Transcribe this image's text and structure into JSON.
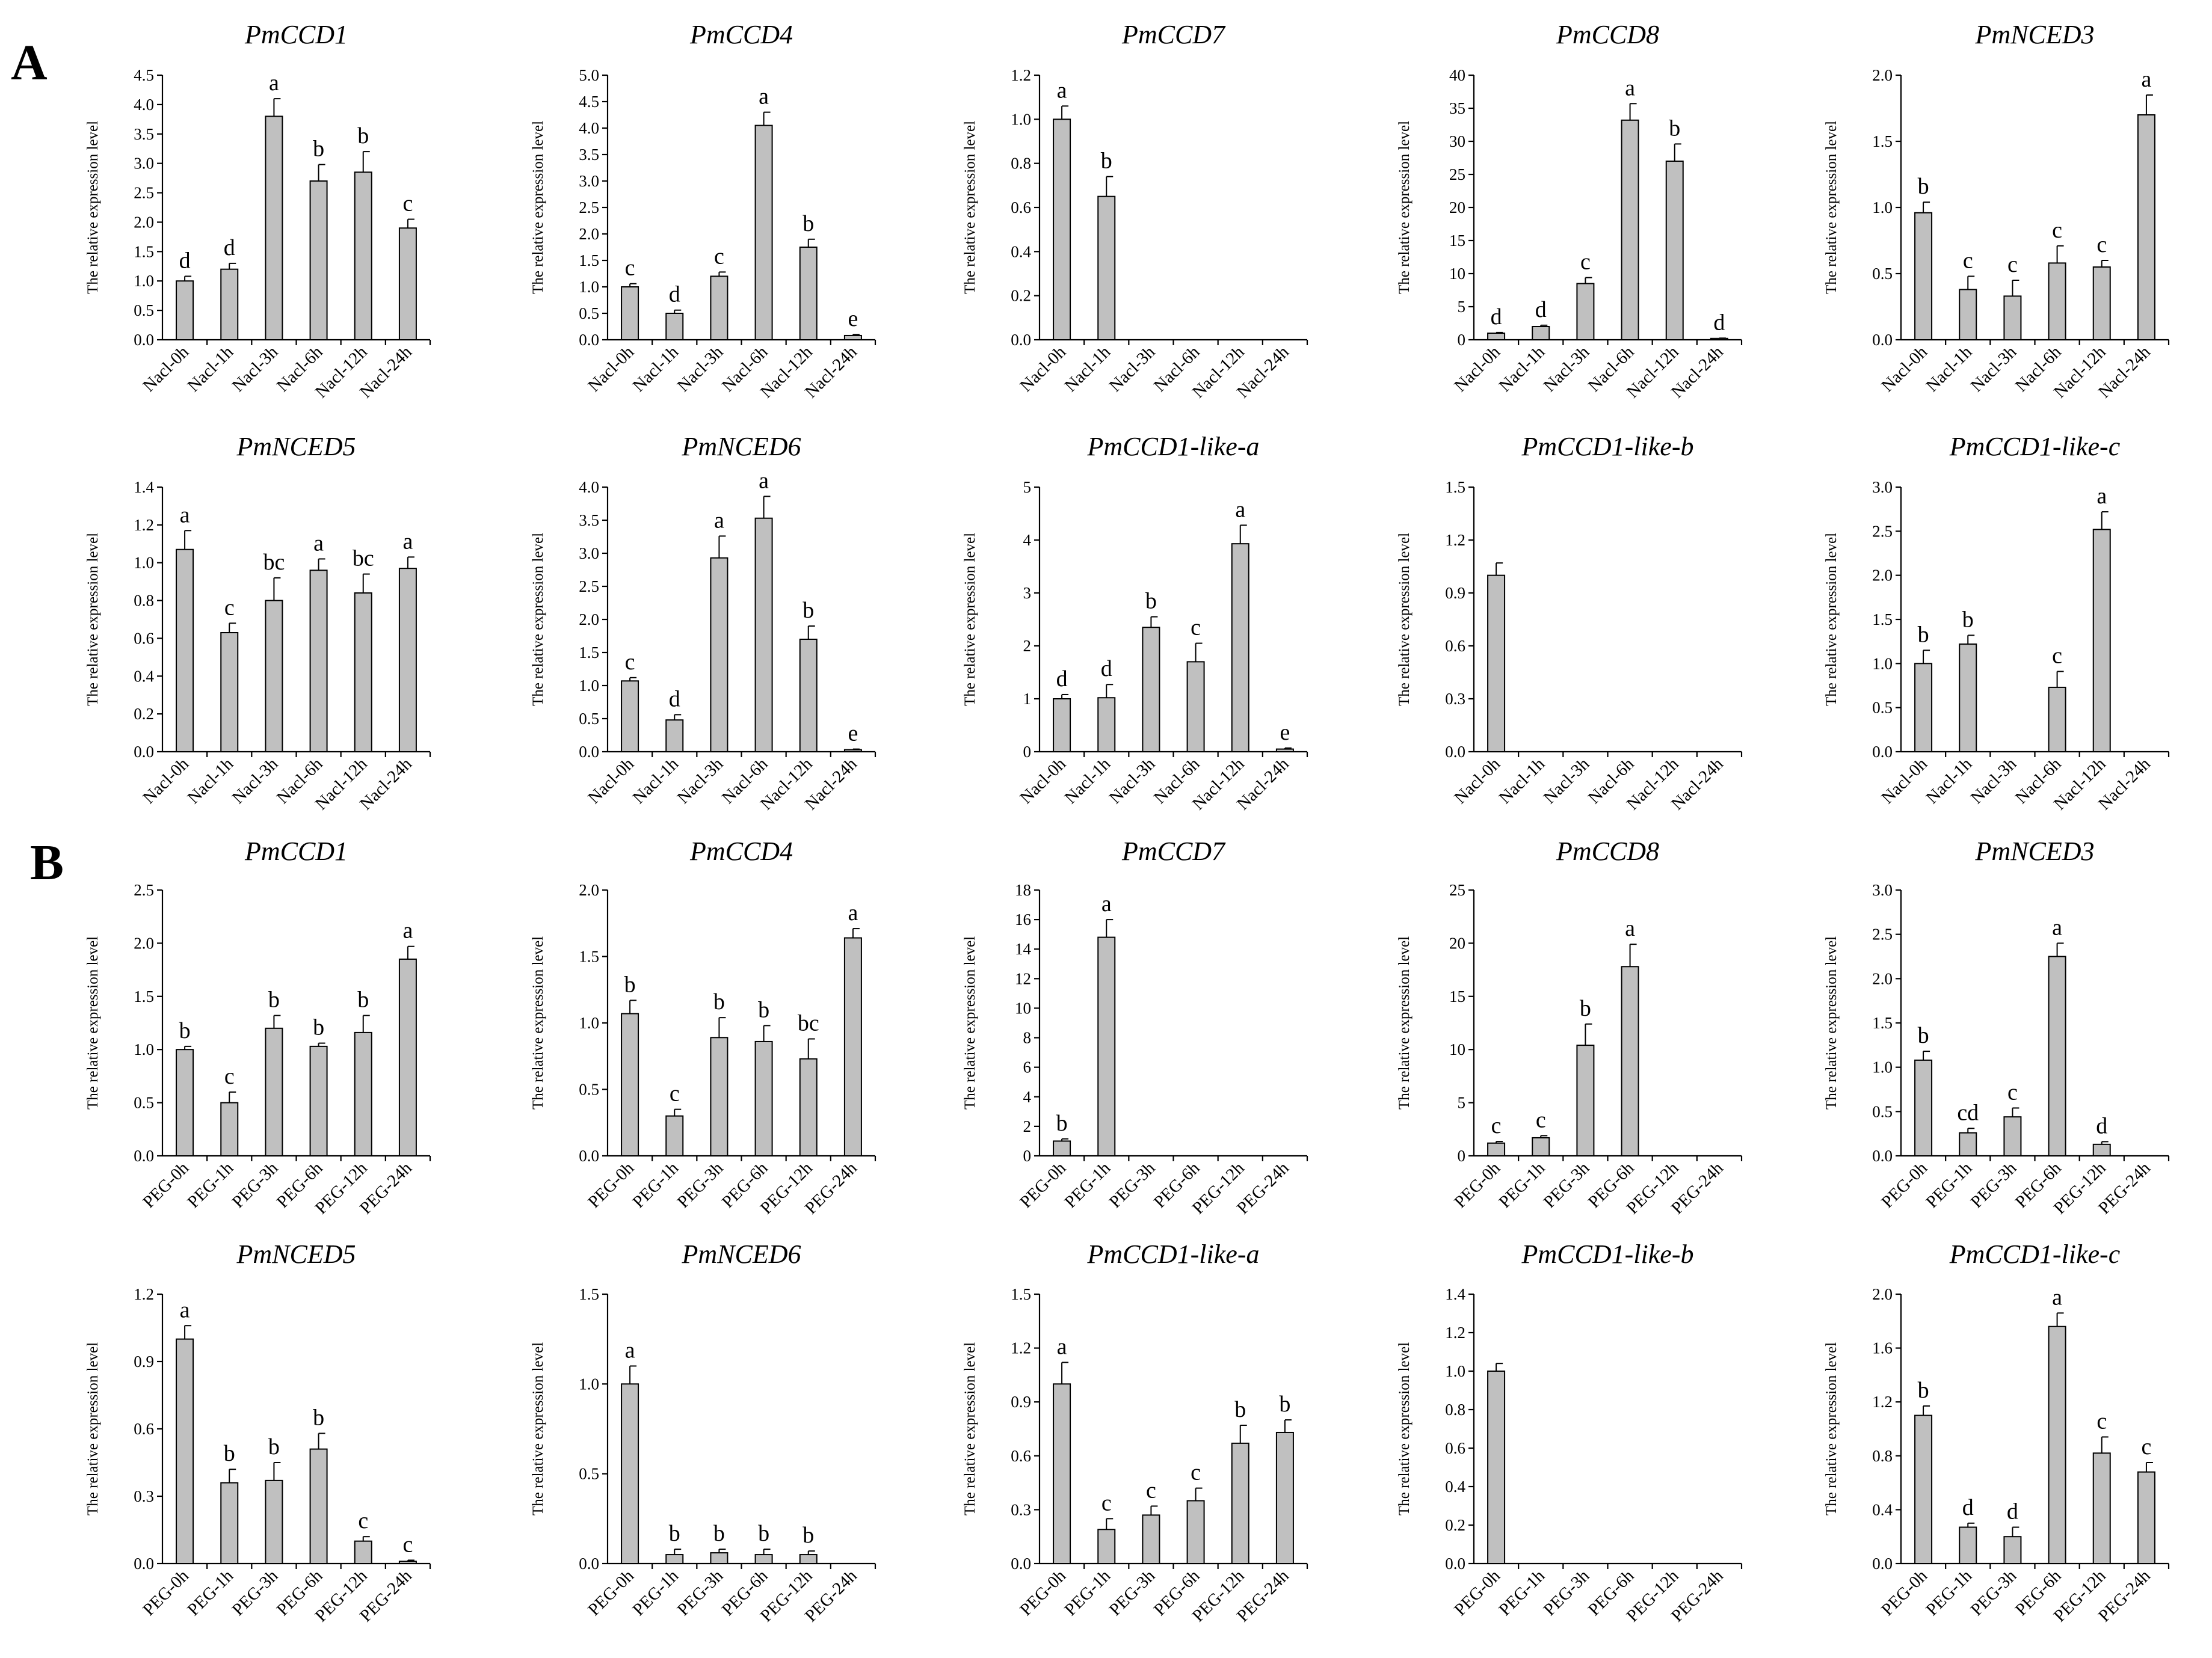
{
  "panel_labels": [
    "A",
    "B"
  ],
  "chart_data": [
    {
      "type": "bar",
      "title": "PmCCD1",
      "ylabel": "The relative expression level",
      "categories": [
        "Nacl-0h",
        "Nacl-1h",
        "Nacl-3h",
        "Nacl-6h",
        "Nacl-12h",
        "Nacl-24h"
      ],
      "values": [
        1.0,
        1.2,
        3.8,
        2.7,
        2.85,
        1.9
      ],
      "errors": [
        0.08,
        0.1,
        0.3,
        0.28,
        0.35,
        0.15
      ],
      "significance": [
        "d",
        "d",
        "a",
        "b",
        "b",
        "c"
      ],
      "ylim": [
        0,
        4.5
      ],
      "yticks": [
        "0.0",
        "0.5",
        "1.0",
        "1.5",
        "2.0",
        "2.5",
        "3.0",
        "3.5",
        "4.0",
        "4.5"
      ]
    },
    {
      "type": "bar",
      "title": "PmCCD4",
      "ylabel": "The relative expression level",
      "categories": [
        "Nacl-0h",
        "Nacl-1h",
        "Nacl-3h",
        "Nacl-6h",
        "Nacl-12h",
        "Nacl-24h"
      ],
      "values": [
        1.0,
        0.5,
        1.2,
        4.05,
        1.75,
        0.08
      ],
      "errors": [
        0.06,
        0.06,
        0.08,
        0.25,
        0.15,
        0.02
      ],
      "significance": [
        "c",
        "d",
        "c",
        "a",
        "b",
        "e"
      ],
      "ylim": [
        0,
        5
      ],
      "yticks": [
        "0.0",
        "0.5",
        "1.0",
        "1.5",
        "2.0",
        "2.5",
        "3.0",
        "3.5",
        "4.0",
        "4.5",
        "5.0"
      ]
    },
    {
      "type": "bar",
      "title": "PmCCD7",
      "ylabel": "The relative expression level",
      "categories": [
        "Nacl-0h",
        "Nacl-1h",
        "Nacl-3h",
        "Nacl-6h",
        "Nacl-12h",
        "Nacl-24h"
      ],
      "values": [
        1.0,
        0.65,
        0,
        0,
        0,
        0
      ],
      "errors": [
        0.06,
        0.09,
        0,
        0,
        0,
        0
      ],
      "significance": [
        "a",
        "b",
        "",
        "",
        "",
        ""
      ],
      "ylim": [
        0,
        1.2
      ],
      "yticks": [
        "0.0",
        "0.2",
        "0.4",
        "0.6",
        "0.8",
        "1.0",
        "1.2"
      ]
    },
    {
      "type": "bar",
      "title": "PmCCD8",
      "ylabel": "The relative expression level",
      "categories": [
        "Nacl-0h",
        "Nacl-1h",
        "Nacl-3h",
        "Nacl-6h",
        "Nacl-12h",
        "Nacl-24h"
      ],
      "values": [
        1.0,
        2.0,
        8.5,
        33.2,
        27.0,
        0.2
      ],
      "errors": [
        0.1,
        0.2,
        0.9,
        2.5,
        2.6,
        0.05
      ],
      "significance": [
        "d",
        "d",
        "c",
        "a",
        "b",
        "d"
      ],
      "ylim": [
        0,
        40
      ],
      "yticks": [
        "0",
        "5",
        "10",
        "15",
        "20",
        "25",
        "30",
        "35",
        "40"
      ]
    },
    {
      "type": "bar",
      "title": "PmNCED3",
      "ylabel": "The relative expression level",
      "categories": [
        "Nacl-0h",
        "Nacl-1h",
        "Nacl-3h",
        "Nacl-6h",
        "Nacl-12h",
        "Nacl-24h"
      ],
      "values": [
        0.96,
        0.38,
        0.33,
        0.58,
        0.55,
        1.7
      ],
      "errors": [
        0.08,
        0.1,
        0.12,
        0.13,
        0.05,
        0.15
      ],
      "significance": [
        "b",
        "c",
        "c",
        "c",
        "c",
        "a"
      ],
      "ylim": [
        0,
        2
      ],
      "yticks": [
        "0.0",
        "0.5",
        "1.0",
        "1.5",
        "2.0"
      ]
    },
    {
      "type": "bar",
      "title": "PmNCED5",
      "ylabel": "The relative expression level",
      "categories": [
        "Nacl-0h",
        "Nacl-1h",
        "Nacl-3h",
        "Nacl-6h",
        "Nacl-12h",
        "Nacl-24h"
      ],
      "values": [
        1.07,
        0.63,
        0.8,
        0.96,
        0.84,
        0.97
      ],
      "errors": [
        0.1,
        0.05,
        0.12,
        0.06,
        0.1,
        0.06
      ],
      "significance": [
        "a",
        "c",
        "bc",
        "a",
        "bc",
        "a"
      ],
      "ylim": [
        0,
        1.4
      ],
      "yticks": [
        "0.0",
        "0.2",
        "0.4",
        "0.6",
        "0.8",
        "1.0",
        "1.2",
        "1.4"
      ]
    },
    {
      "type": "bar",
      "title": "PmNCED6",
      "ylabel": "The relative expression level",
      "categories": [
        "Nacl-0h",
        "Nacl-1h",
        "Nacl-3h",
        "Nacl-6h",
        "Nacl-12h",
        "Nacl-24h"
      ],
      "values": [
        1.07,
        0.48,
        2.93,
        3.53,
        1.7,
        0.03
      ],
      "errors": [
        0.05,
        0.08,
        0.33,
        0.33,
        0.2,
        0.01
      ],
      "significance": [
        "c",
        "d",
        "a",
        "a",
        "b",
        "e"
      ],
      "ylim": [
        0,
        4
      ],
      "yticks": [
        "0.0",
        "0.5",
        "1.0",
        "1.5",
        "2.0",
        "2.5",
        "3.0",
        "3.5",
        "4.0"
      ]
    },
    {
      "type": "bar",
      "title": "PmCCD1-like-a",
      "ylabel": "The relative expression level",
      "categories": [
        "Nacl-0h",
        "Nacl-1h",
        "Nacl-3h",
        "Nacl-6h",
        "Nacl-12h",
        "Nacl-24h"
      ],
      "values": [
        1.0,
        1.02,
        2.35,
        1.7,
        3.93,
        0.05
      ],
      "errors": [
        0.08,
        0.25,
        0.2,
        0.35,
        0.35,
        0.02
      ],
      "significance": [
        "d",
        "d",
        "b",
        "c",
        "a",
        "e"
      ],
      "ylim": [
        0,
        5
      ],
      "yticks": [
        "0",
        "1",
        "2",
        "3",
        "4",
        "5"
      ]
    },
    {
      "type": "bar",
      "title": "PmCCD1-like-b",
      "ylabel": "The relative expression level",
      "categories": [
        "Nacl-0h",
        "Nacl-1h",
        "Nacl-3h",
        "Nacl-6h",
        "Nacl-12h",
        "Nacl-24h"
      ],
      "values": [
        1.0,
        0,
        0,
        0,
        0,
        0
      ],
      "errors": [
        0.07,
        0,
        0,
        0,
        0,
        0
      ],
      "significance": [
        "",
        "",
        "",
        "",
        "",
        ""
      ],
      "ylim": [
        0,
        1.5
      ],
      "yticks": [
        "0.0",
        "0.3",
        "0.6",
        "0.9",
        "1.2",
        "1.5"
      ]
    },
    {
      "type": "bar",
      "title": "PmCCD1-like-c",
      "ylabel": "The relative expression level",
      "categories": [
        "Nacl-0h",
        "Nacl-1h",
        "Nacl-3h",
        "Nacl-6h",
        "Nacl-12h",
        "Nacl-24h"
      ],
      "values": [
        1.0,
        1.22,
        0,
        0.73,
        2.52,
        0
      ],
      "errors": [
        0.15,
        0.1,
        0,
        0.18,
        0.2,
        0
      ],
      "significance": [
        "b",
        "b",
        "",
        "c",
        "a",
        ""
      ],
      "ylim": [
        0,
        3
      ],
      "yticks": [
        "0.0",
        "0.5",
        "1.0",
        "1.5",
        "2.0",
        "2.5",
        "3.0"
      ]
    },
    {
      "type": "bar",
      "title": "PmCCD1",
      "ylabel": "The relative expression level",
      "categories": [
        "PEG-0h",
        "PEG-1h",
        "PEG-3h",
        "PEG-6h",
        "PEG-12h",
        "PEG-24h"
      ],
      "values": [
        1.0,
        0.5,
        1.2,
        1.03,
        1.16,
        1.85
      ],
      "errors": [
        0.03,
        0.1,
        0.12,
        0.03,
        0.16,
        0.12
      ],
      "significance": [
        "b",
        "c",
        "b",
        "b",
        "b",
        "a"
      ],
      "ylim": [
        0,
        2.5
      ],
      "yticks": [
        "0.0",
        "0.5",
        "1.0",
        "1.5",
        "2.0",
        "2.5"
      ]
    },
    {
      "type": "bar",
      "title": "PmCCD4",
      "ylabel": "The relative expression level",
      "categories": [
        "PEG-0h",
        "PEG-1h",
        "PEG-3h",
        "PEG-6h",
        "PEG-12h",
        "PEG-24h"
      ],
      "values": [
        1.07,
        0.3,
        0.89,
        0.86,
        0.73,
        1.64
      ],
      "errors": [
        0.1,
        0.05,
        0.15,
        0.12,
        0.15,
        0.07
      ],
      "significance": [
        "b",
        "c",
        "b",
        "b",
        "bc",
        "a"
      ],
      "ylim": [
        0,
        2
      ],
      "yticks": [
        "0.0",
        "0.5",
        "1.0",
        "1.5",
        "2.0"
      ]
    },
    {
      "type": "bar",
      "title": "PmCCD7",
      "ylabel": "The relative expression level",
      "categories": [
        "PEG-0h",
        "PEG-1h",
        "PEG-3h",
        "PEG-6h",
        "PEG-12h",
        "PEG-24h"
      ],
      "values": [
        1.0,
        14.8,
        0,
        0,
        0,
        0
      ],
      "errors": [
        0.15,
        1.2,
        0,
        0,
        0,
        0
      ],
      "significance": [
        "b",
        "a",
        "",
        "",
        "",
        ""
      ],
      "ylim": [
        0,
        18
      ],
      "yticks": [
        "0",
        "2",
        "4",
        "6",
        "8",
        "10",
        "12",
        "14",
        "16",
        "18"
      ]
    },
    {
      "type": "bar",
      "title": "PmCCD8",
      "ylabel": "The relative expression level",
      "categories": [
        "PEG-0h",
        "PEG-1h",
        "PEG-3h",
        "PEG-6h",
        "PEG-12h",
        "PEG-24h"
      ],
      "values": [
        1.2,
        1.7,
        10.4,
        17.8,
        0,
        0
      ],
      "errors": [
        0.15,
        0.2,
        2.0,
        2.1,
        0,
        0
      ],
      "significance": [
        "c",
        "c",
        "b",
        "a",
        "",
        ""
      ],
      "ylim": [
        0,
        25
      ],
      "yticks": [
        "0",
        "5",
        "10",
        "15",
        "20",
        "25"
      ]
    },
    {
      "type": "bar",
      "title": "PmNCED3",
      "ylabel": "The relative expression level",
      "categories": [
        "PEG-0h",
        "PEG-1h",
        "PEG-3h",
        "PEG-6h",
        "PEG-12h",
        "PEG-24h"
      ],
      "values": [
        1.08,
        0.26,
        0.44,
        2.25,
        0.13,
        0
      ],
      "errors": [
        0.1,
        0.05,
        0.1,
        0.15,
        0.03,
        0
      ],
      "significance": [
        "b",
        "cd",
        "c",
        "a",
        "d",
        ""
      ],
      "ylim": [
        0,
        3
      ],
      "yticks": [
        "0.0",
        "0.5",
        "1.0",
        "1.5",
        "2.0",
        "2.5",
        "3.0"
      ]
    },
    {
      "type": "bar",
      "title": "PmNCED5",
      "ylabel": "The relative expression level",
      "categories": [
        "PEG-0h",
        "PEG-1h",
        "PEG-3h",
        "PEG-6h",
        "PEG-12h",
        "PEG-24h"
      ],
      "values": [
        1.0,
        0.36,
        0.37,
        0.51,
        0.1,
        0.01
      ],
      "errors": [
        0.06,
        0.06,
        0.08,
        0.07,
        0.02,
        0.005
      ],
      "significance": [
        "a",
        "b",
        "b",
        "b",
        "c",
        "c"
      ],
      "ylim": [
        0,
        1.2
      ],
      "yticks": [
        "0.0",
        "0.3",
        "0.6",
        "0.9",
        "1.2"
      ]
    },
    {
      "type": "bar",
      "title": "PmNCED6",
      "ylabel": "The relative expression level",
      "categories": [
        "PEG-0h",
        "PEG-1h",
        "PEG-3h",
        "PEG-6h",
        "PEG-12h",
        "PEG-24h"
      ],
      "values": [
        1.0,
        0.05,
        0.06,
        0.05,
        0.05,
        0
      ],
      "errors": [
        0.1,
        0.03,
        0.02,
        0.03,
        0.02,
        0
      ],
      "significance": [
        "a",
        "b",
        "b",
        "b",
        "b",
        ""
      ],
      "ylim": [
        0,
        1.5
      ],
      "yticks": [
        "0.0",
        "0.5",
        "1.0",
        "1.5"
      ]
    },
    {
      "type": "bar",
      "title": "PmCCD1-like-a",
      "ylabel": "The relative expression level",
      "categories": [
        "PEG-0h",
        "PEG-1h",
        "PEG-3h",
        "PEG-6h",
        "PEG-12h",
        "PEG-24h"
      ],
      "values": [
        1.0,
        0.19,
        0.27,
        0.35,
        0.67,
        0.73
      ],
      "errors": [
        0.12,
        0.06,
        0.05,
        0.07,
        0.1,
        0.07
      ],
      "significance": [
        "a",
        "c",
        "c",
        "c",
        "b",
        "b"
      ],
      "ylim": [
        0,
        1.5
      ],
      "yticks": [
        "0.0",
        "0.3",
        "0.6",
        "0.9",
        "1.2",
        "1.5"
      ]
    },
    {
      "type": "bar",
      "title": "PmCCD1-like-b",
      "ylabel": "The relative expression level",
      "categories": [
        "PEG-0h",
        "PEG-1h",
        "PEG-3h",
        "PEG-6h",
        "PEG-12h",
        "PEG-24h"
      ],
      "values": [
        1.0,
        0,
        0,
        0,
        0,
        0
      ],
      "errors": [
        0.04,
        0,
        0,
        0,
        0,
        0
      ],
      "significance": [
        "",
        "",
        "",
        "",
        "",
        ""
      ],
      "ylim": [
        0,
        1.4
      ],
      "yticks": [
        "0.0",
        "0.2",
        "0.4",
        "0.6",
        "0.8",
        "1.0",
        "1.2",
        "1.4"
      ]
    },
    {
      "type": "bar",
      "title": "PmCCD1-like-c",
      "ylabel": "The relative expression level",
      "categories": [
        "PEG-0h",
        "PEG-1h",
        "PEG-3h",
        "PEG-6h",
        "PEG-12h",
        "PEG-24h"
      ],
      "values": [
        1.1,
        0.27,
        0.2,
        1.76,
        0.82,
        0.68
      ],
      "errors": [
        0.07,
        0.03,
        0.07,
        0.1,
        0.12,
        0.07
      ],
      "significance": [
        "b",
        "d",
        "d",
        "a",
        "c",
        "c"
      ],
      "ylim": [
        0,
        2
      ],
      "yticks": [
        "0.0",
        "0.4",
        "0.8",
        "1.2",
        "1.6",
        "2.0"
      ]
    }
  ]
}
